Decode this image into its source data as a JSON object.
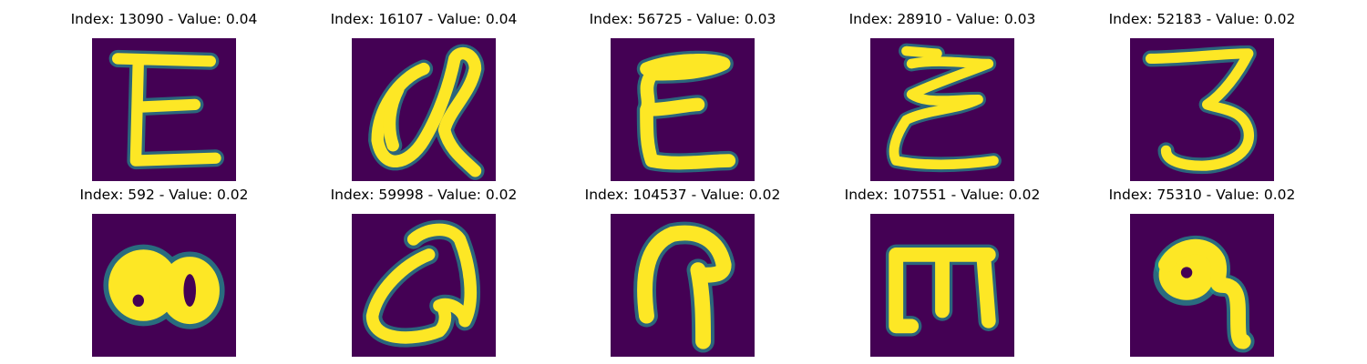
{
  "figure": {
    "colors": {
      "background": "#440154",
      "foreground": "#fde725",
      "edge": "#21908d"
    },
    "panels": [
      {
        "title": "Index: 13090 - Value: 0.04",
        "glyph": "E"
      },
      {
        "title": "Index: 16107 - Value: 0.04",
        "glyph": "a"
      },
      {
        "title": "Index: 56725 - Value: 0.03",
        "glyph": "E"
      },
      {
        "title": "Index: 28910 - Value: 0.03",
        "glyph": "E"
      },
      {
        "title": "Index: 52183 - Value: 0.02",
        "glyph": "3"
      },
      {
        "title": "Index: 592 - Value: 0.02",
        "glyph": "blob"
      },
      {
        "title": "Index: 59998 - Value: 0.02",
        "glyph": "a"
      },
      {
        "title": "Index: 104537 - Value: 0.02",
        "glyph": "P"
      },
      {
        "title": "Index: 107551 - Value: 0.02",
        "glyph": "m"
      },
      {
        "title": "Index: 75310 - Value: 0.02",
        "glyph": "9"
      }
    ]
  }
}
